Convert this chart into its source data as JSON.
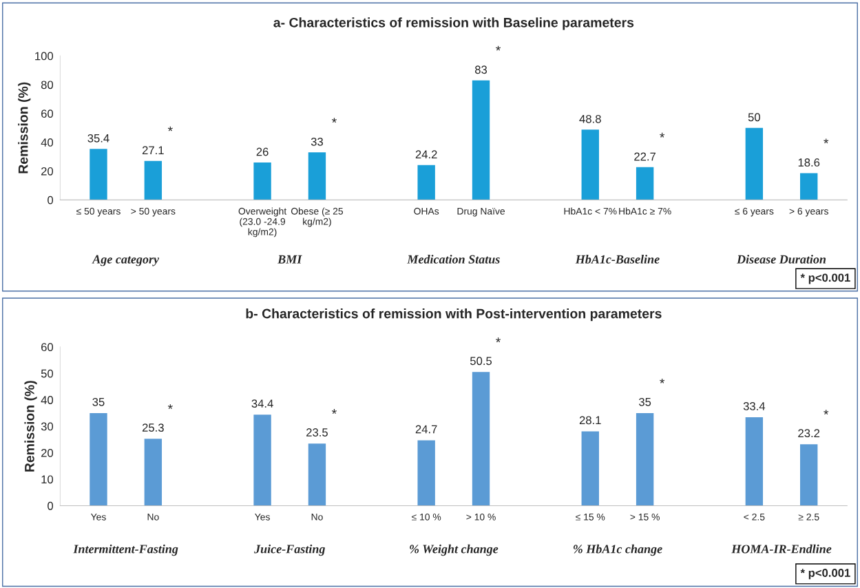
{
  "chart_data": [
    {
      "type": "bar",
      "title": "a- Characteristics of remission with Baseline parameters",
      "ylabel": "Remission (%)",
      "categories": [
        "≤ 50 years",
        "> 50 years",
        null,
        "Overweight\n(23.0 -24.9\nkg/m2)",
        "Obese (≥ 25\nkg/m2)",
        null,
        "OHAs",
        "Drug Naïve",
        null,
        "HbA1c < 7%",
        "HbA1c ≥ 7%",
        null,
        "≤ 6 years",
        "> 6 years"
      ],
      "values": [
        35.4,
        27.1,
        null,
        26,
        33,
        null,
        24.2,
        83,
        null,
        48.8,
        22.7,
        null,
        50,
        18.6
      ],
      "color": "#1a9fd8",
      "ylim": [
        0,
        100
      ],
      "yticks": [
        0,
        20,
        40,
        60,
        80,
        100
      ],
      "data_labels": true,
      "grid": false,
      "legend": false,
      "annotations": [
        "Age category",
        "BMI",
        "Medication Status",
        "HbA1c-Baseline",
        "Disease Duration",
        "* p<0.001",
        "*",
        "*",
        "*",
        "*",
        "*"
      ]
    },
    {
      "type": "bar",
      "title": "b- Characteristics of remission with Post-intervention parameters",
      "ylabel": "Remission (%)",
      "categories": [
        "Yes",
        "No",
        null,
        "Yes",
        "No",
        null,
        "≤ 10 %",
        "> 10 %",
        null,
        "≤ 15 %",
        "> 15 %",
        null,
        "< 2.5",
        "≥ 2.5"
      ],
      "values": [
        35,
        25.3,
        null,
        34.4,
        23.5,
        null,
        24.7,
        50.5,
        null,
        28.1,
        35,
        null,
        33.4,
        23.2
      ],
      "color": "#5b9bd5",
      "ylim": [
        0,
        60
      ],
      "yticks": [
        0,
        10,
        20,
        30,
        40,
        50,
        60
      ],
      "data_labels": true,
      "grid": false,
      "legend": false,
      "annotations": [
        "Intermittent-Fasting",
        "Juice-Fasting",
        "% Weight change",
        "% HbA1c change",
        "HOMA-IR-Endline",
        "* p<0.001",
        "*",
        "*",
        "*",
        "*",
        "*"
      ]
    }
  ]
}
